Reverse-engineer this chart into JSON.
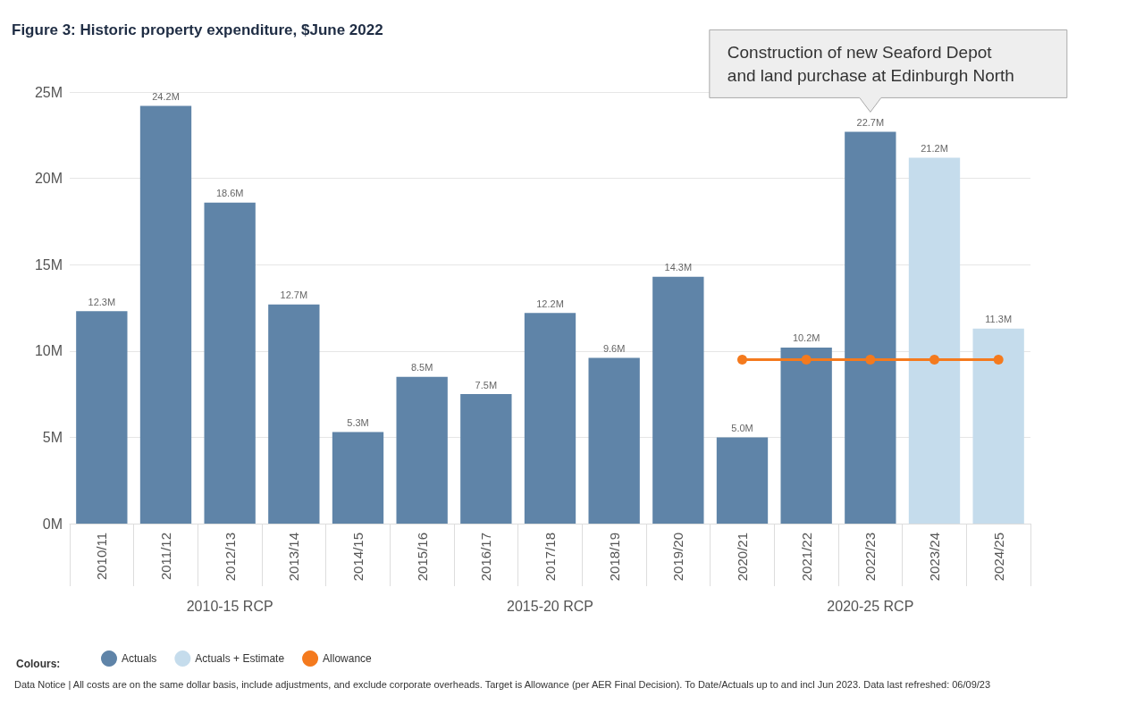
{
  "chart_data": {
    "type": "bar",
    "title": "Figure 3: Historic property expenditure, $June 2022",
    "categories": [
      "2010/11",
      "2011/12",
      "2012/13",
      "2013/14",
      "2014/15",
      "2015/16",
      "2016/17",
      "2017/18",
      "2018/19",
      "2019/20",
      "2020/21",
      "2021/22",
      "2022/23",
      "2023/24",
      "2024/25"
    ],
    "stacked": true,
    "series": [
      {
        "name": "Actuals",
        "color": "#5f84a8",
        "values": [
          12.3,
          24.2,
          18.6,
          12.7,
          5.3,
          8.5,
          7.5,
          12.2,
          9.6,
          14.3,
          5.0,
          10.2,
          22.7,
          null,
          null
        ],
        "value_labels": [
          "12.3M",
          "24.2M",
          "18.6M",
          "12.7M",
          "5.3M",
          "8.5M",
          "7.5M",
          "12.2M",
          "9.6M",
          "14.3M",
          "5.0M",
          "10.2M",
          "22.7M",
          null,
          null
        ]
      },
      {
        "name": "Actuals + Estimate",
        "color": "#c5dcec",
        "values": [
          null,
          null,
          null,
          null,
          null,
          null,
          null,
          null,
          null,
          null,
          null,
          null,
          null,
          21.2,
          11.3
        ],
        "value_labels": [
          null,
          null,
          null,
          null,
          null,
          null,
          null,
          null,
          null,
          null,
          null,
          null,
          null,
          "21.2M",
          "11.3M"
        ]
      },
      {
        "name": "Allowance",
        "type": "line",
        "color": "#f47a1e",
        "values": [
          null,
          null,
          null,
          null,
          null,
          null,
          null,
          null,
          null,
          null,
          9.5,
          9.5,
          9.5,
          9.5,
          9.5
        ]
      }
    ],
    "ylim": [
      0,
      25
    ],
    "yticks": [
      {
        "value": 0,
        "label": "0M"
      },
      {
        "value": 5,
        "label": "5M"
      },
      {
        "value": 10,
        "label": "10M"
      },
      {
        "value": 15,
        "label": "15M"
      },
      {
        "value": 20,
        "label": "20M"
      },
      {
        "value": 25,
        "label": "25M"
      }
    ],
    "grid": "y",
    "marker": "circle",
    "legend": "bottom left",
    "legend_title": "Colours:",
    "annotations": [
      {
        "text": "Construction of new Seaford Depot\nand land purchase at Edinburgh North",
        "x": "2022/23",
        "y": 22.7
      },
      "2010-15 RCP",
      "2015-20 RCP",
      "2020-25 RCP",
      "Data Notice | All costs are on the same dollar basis, include adjustments, and exclude corporate overheads. Target is Allowance (per AER Final Decision). To Date/Actuals up to and incl Jun 2023. Data last refreshed: 06/09/23"
    ]
  }
}
